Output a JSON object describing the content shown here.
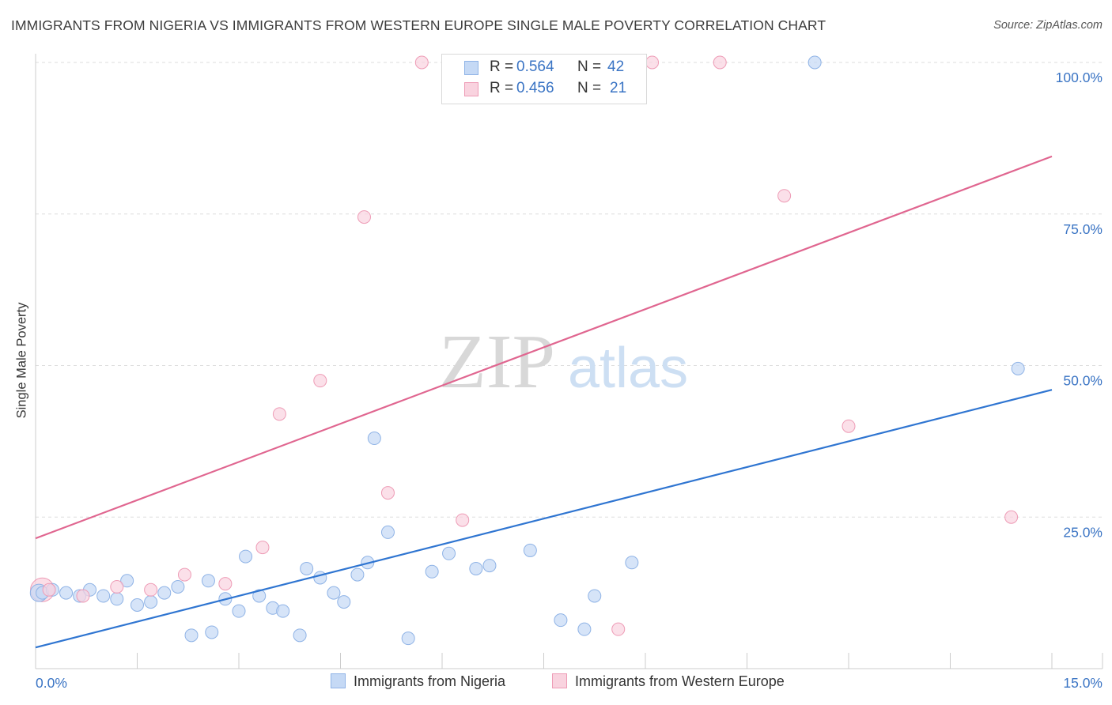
{
  "header": {
    "title": "IMMIGRANTS FROM NIGERIA VS IMMIGRANTS FROM WESTERN EUROPE SINGLE MALE POVERTY CORRELATION CHART",
    "source": "Source: ZipAtlas.com"
  },
  "legend": {
    "rows": [
      {
        "r_label": "R =",
        "r_value": "0.564",
        "n_label": "N =",
        "n_value": "42"
      },
      {
        "r_label": "R =",
        "r_value": "0.456",
        "n_label": "N =",
        "n_value": "21"
      }
    ]
  },
  "watermark": {
    "zip": "ZIP",
    "atlas": "atlas"
  },
  "colors": {
    "nigeria_fill": "#c5d9f5",
    "nigeria_stroke": "#8fb3e6",
    "nigeria_line": "#2f75d1",
    "we_fill": "#f9d3df",
    "we_stroke": "#ee9cb6",
    "we_line": "#e06690",
    "tick_label": "#3a74c4",
    "grid": "#dddddd"
  },
  "chart_data": {
    "type": "scatter",
    "title": "IMMIGRANTS FROM NIGERIA VS IMMIGRANTS FROM WESTERN EUROPE SINGLE MALE POVERTY CORRELATION CHART",
    "xlabel": "",
    "ylabel": "Single Male Poverty",
    "xlim": [
      0,
      15
    ],
    "ylim": [
      0,
      100
    ],
    "x_tick_labels": [
      "0.0%",
      "15.0%"
    ],
    "y_tick_labels": [
      "25.0%",
      "50.0%",
      "75.0%",
      "100.0%"
    ],
    "y_ticks": [
      25,
      50,
      75,
      100
    ],
    "grid": "horizontal dashed",
    "legend_position": "top-center",
    "series": [
      {
        "name": "Immigrants from Nigeria",
        "r": 0.564,
        "n": 42,
        "trend": {
          "x": [
            0,
            15
          ],
          "y": [
            3.5,
            46.0
          ]
        },
        "points": [
          [
            0.1,
            12.5
          ],
          [
            0.25,
            13.0
          ],
          [
            0.45,
            12.5
          ],
          [
            0.65,
            12.0
          ],
          [
            0.8,
            13.0
          ],
          [
            1.0,
            12.0
          ],
          [
            1.2,
            11.5
          ],
          [
            1.35,
            14.5
          ],
          [
            1.5,
            10.5
          ],
          [
            1.7,
            11.0
          ],
          [
            1.9,
            12.5
          ],
          [
            2.1,
            13.5
          ],
          [
            2.3,
            5.5
          ],
          [
            2.55,
            14.5
          ],
          [
            2.6,
            6.0
          ],
          [
            2.8,
            11.5
          ],
          [
            3.0,
            9.5
          ],
          [
            3.1,
            18.5
          ],
          [
            3.3,
            12.0
          ],
          [
            3.5,
            10.0
          ],
          [
            3.65,
            9.5
          ],
          [
            3.9,
            5.5
          ],
          [
            4.0,
            16.5
          ],
          [
            4.2,
            15.0
          ],
          [
            4.4,
            12.5
          ],
          [
            4.55,
            11.0
          ],
          [
            4.75,
            15.5
          ],
          [
            4.9,
            17.5
          ],
          [
            5.0,
            38.0
          ],
          [
            5.2,
            22.5
          ],
          [
            5.5,
            5.0
          ],
          [
            5.85,
            16.0
          ],
          [
            6.1,
            19.0
          ],
          [
            6.5,
            16.5
          ],
          [
            6.7,
            17.0
          ],
          [
            7.3,
            19.5
          ],
          [
            7.75,
            8.0
          ],
          [
            8.1,
            6.5
          ],
          [
            8.25,
            12.0
          ],
          [
            8.8,
            17.5
          ],
          [
            11.5,
            100
          ],
          [
            14.5,
            49.5
          ]
        ]
      },
      {
        "name": "Immigrants from Western Europe",
        "r": 0.456,
        "n": 21,
        "trend": {
          "x": [
            0,
            15
          ],
          "y": [
            21.5,
            84.5
          ]
        },
        "points": [
          [
            0.2,
            13.0
          ],
          [
            0.7,
            12.0
          ],
          [
            1.2,
            13.5
          ],
          [
            1.7,
            13.0
          ],
          [
            2.2,
            15.5
          ],
          [
            2.8,
            14.0
          ],
          [
            3.35,
            20.0
          ],
          [
            3.6,
            42.0
          ],
          [
            4.2,
            47.5
          ],
          [
            4.85,
            74.5
          ],
          [
            5.2,
            29.0
          ],
          [
            5.7,
            100
          ],
          [
            6.3,
            24.5
          ],
          [
            7.0,
            100
          ],
          [
            7.8,
            100
          ],
          [
            8.6,
            6.5
          ],
          [
            9.1,
            100
          ],
          [
            10.1,
            100
          ],
          [
            11.05,
            78.0
          ],
          [
            12.0,
            40.0
          ],
          [
            14.4,
            25.0
          ]
        ]
      }
    ]
  }
}
